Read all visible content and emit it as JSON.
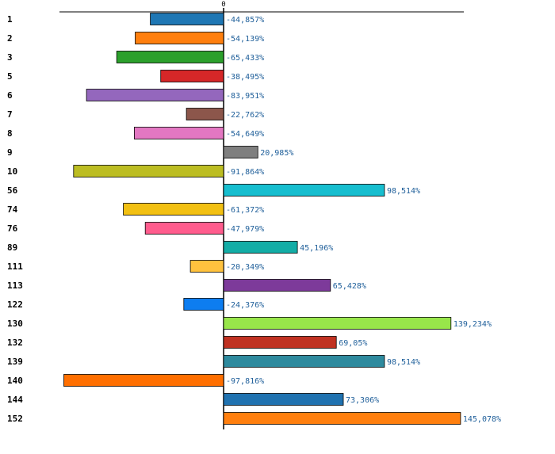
{
  "chart_data": {
    "type": "bar",
    "orientation": "horizontal",
    "title": "",
    "xlabel": "",
    "ylabel": "",
    "zero_label": "0",
    "xlim": [
      -100,
      150
    ],
    "grid": false,
    "categories": [
      "1",
      "2",
      "3",
      "5",
      "6",
      "7",
      "8",
      "9",
      "10",
      "56",
      "74",
      "76",
      "89",
      "111",
      "113",
      "122",
      "130",
      "132",
      "139",
      "140",
      "144",
      "152"
    ],
    "values": [
      -44.857,
      -54.139,
      -65.433,
      -38.495,
      -83.951,
      -22.762,
      -54.649,
      20.985,
      -91.864,
      98.514,
      -61.372,
      -47.979,
      45.196,
      -20.349,
      65.428,
      -24.376,
      139.234,
      69.05,
      98.514,
      -97.816,
      73.306,
      145.078
    ],
    "value_labels": [
      "-44,857%",
      "-54,139%",
      "-65,433%",
      "-38,495%",
      "-83,951%",
      "-22,762%",
      "-54,649%",
      "20,985%",
      "-91,864%",
      "98,514%",
      "-61,372%",
      "-47,979%",
      "45,196%",
      "-20,349%",
      "65,428%",
      "-24,376%",
      "139,234%",
      "69,05%",
      "98,514%",
      "-97,816%",
      "73,306%",
      "145,078%"
    ],
    "colors": [
      "#1f77b4",
      "#ff7f0e",
      "#2ca02c",
      "#d62728",
      "#9467bd",
      "#8c564b",
      "#e377c2",
      "#7f7f7f",
      "#bcbd22",
      "#17becf",
      "#f2c012",
      "#ff5c8d",
      "#13ada6",
      "#ffc23e",
      "#7d3a9a",
      "#0d7df0",
      "#98e64a",
      "#c03222",
      "#2e8a9e",
      "#ff6f00",
      "#2072b0",
      "#ff7f0e"
    ]
  }
}
